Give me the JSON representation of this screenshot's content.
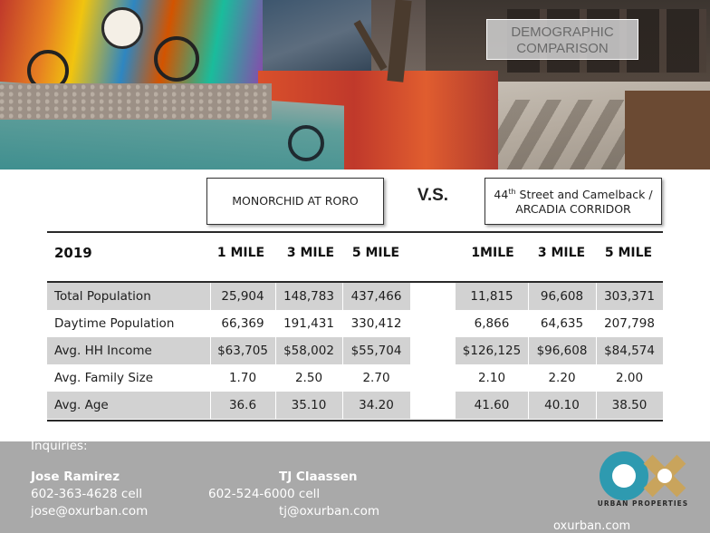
{
  "badge": {
    "line1": "DEMOGRAPHIC",
    "line2": "COMPARISON"
  },
  "left_property": {
    "name": "MONORCHID AT RORO"
  },
  "vs_label": "V.S.",
  "right_property": {
    "line1_prefix": "44",
    "line1_sup": "th",
    "line1_rest": " Street and Camelback /",
    "line2": "ARCADIA CORRIDOR"
  },
  "table": {
    "year": "2019",
    "left_headers": [
      "1 MILE",
      "3 MILE",
      "5 MILE"
    ],
    "right_headers": [
      "1MILE",
      "3 MILE",
      "5 MILE"
    ],
    "rows": [
      {
        "label": "Total Population",
        "left": [
          "25,904",
          "148,783",
          "437,466"
        ],
        "right": [
          "11,815",
          "96,608",
          "303,371"
        ]
      },
      {
        "label": "Daytime Population",
        "left": [
          "66,369",
          "191,431",
          "330,412"
        ],
        "right": [
          "6,866",
          "64,635",
          "207,798"
        ]
      },
      {
        "label": "Avg. HH Income",
        "left": [
          "$63,705",
          "$58,002",
          "$55,704"
        ],
        "right": [
          "$126,125",
          "$96,608",
          "$84,574"
        ]
      },
      {
        "label": "Avg. Family Size",
        "left": [
          "1.70",
          "2.50",
          "2.70"
        ],
        "right": [
          "2.10",
          "2.20",
          "2.00"
        ]
      },
      {
        "label": "Avg. Age",
        "left": [
          "36.6",
          "35.10",
          "34.20"
        ],
        "right": [
          "41.60",
          "40.10",
          "38.50"
        ]
      }
    ]
  },
  "footer": {
    "inquiries": "Inquiries:",
    "contact1": {
      "name": "Jose Ramirez",
      "phone": "602-363-4628 cell",
      "email": "jose@oxurban.com"
    },
    "contact2": {
      "name": "TJ Claassen",
      "phone": "602-524-6000 cell",
      "email": "tj@oxurban.com"
    },
    "logo_text": "URBAN PROPERTIES",
    "website": "oxurban.com"
  },
  "colors": {
    "logo_teal": "#2e9ab0",
    "logo_gold": "#c9a45c",
    "row_shade": "#d2d2d2",
    "footer_bg": "#a9a9a9"
  }
}
